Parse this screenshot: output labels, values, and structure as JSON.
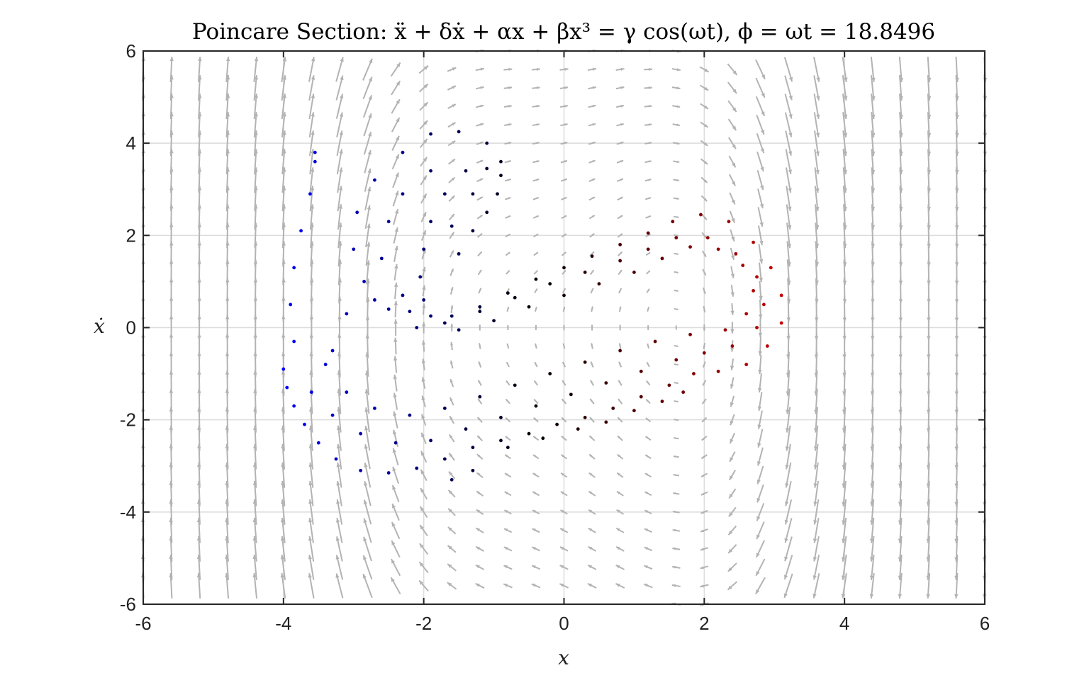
{
  "chart_data": {
    "type": "scatter",
    "title": "Poincare Section: ẍ + δẋ + αx + βx³ = γ cos(ωt), ϕ = ωt = 18.8496",
    "xlabel": "x",
    "ylabel": "ẋ",
    "xlim": [
      -6,
      6
    ],
    "ylim": [
      -6,
      6
    ],
    "xticks": [
      "-6",
      "-4",
      "-2",
      "0",
      "2",
      "4",
      "6"
    ],
    "yticks": [
      "-6",
      "-4",
      "-2",
      "0",
      "2",
      "4",
      "6"
    ],
    "grid": true,
    "colormap": [
      "#0000ff",
      "#000000",
      "#cc0000"
    ],
    "vector_field": {
      "color": "#b3b3b3",
      "grid_step": 0.4,
      "system": "dx/dt = y ; dy/dt = -delta*y - alpha*x - beta*x^3 + gamma*cos(phi)",
      "params": {
        "delta": 0.25,
        "alpha": -1,
        "beta": 1,
        "gamma": 2.5,
        "phi": 18.8496
      }
    },
    "series": [
      {
        "values": [
          [
            -4.0,
            -0.9
          ],
          [
            -3.95,
            -1.3
          ],
          [
            -3.85,
            -1.7
          ],
          [
            -3.7,
            -2.1
          ],
          [
            -3.5,
            -2.5
          ],
          [
            -3.25,
            -2.85
          ],
          [
            -2.9,
            -3.1
          ],
          [
            -2.5,
            -3.15
          ],
          [
            -2.1,
            -3.05
          ],
          [
            -1.7,
            -2.85
          ],
          [
            -1.3,
            -2.6
          ],
          [
            -0.9,
            -2.45
          ],
          [
            -0.5,
            -2.3
          ],
          [
            -0.1,
            -2.1
          ],
          [
            0.3,
            -1.95
          ],
          [
            0.7,
            -1.75
          ],
          [
            1.1,
            -1.5
          ],
          [
            1.5,
            -1.25
          ],
          [
            1.85,
            -1.0
          ],
          [
            2.2,
            -0.95
          ],
          [
            2.6,
            -0.8
          ],
          [
            2.9,
            -0.4
          ],
          [
            3.1,
            0.1
          ],
          [
            3.1,
            0.7
          ],
          [
            2.95,
            1.3
          ],
          [
            2.7,
            1.85
          ],
          [
            2.35,
            2.3
          ],
          [
            1.95,
            2.45
          ],
          [
            1.55,
            2.3
          ],
          [
            1.2,
            2.05
          ],
          [
            0.8,
            1.8
          ],
          [
            0.4,
            1.55
          ],
          [
            0.0,
            1.3
          ],
          [
            -0.4,
            1.05
          ],
          [
            -0.8,
            0.75
          ],
          [
            -1.2,
            0.45
          ],
          [
            -1.6,
            0.25
          ],
          [
            -1.9,
            0.25
          ],
          [
            -2.0,
            0.6
          ],
          [
            -2.05,
            1.1
          ],
          [
            -2.0,
            1.7
          ],
          [
            -1.9,
            2.3
          ],
          [
            -1.7,
            2.9
          ],
          [
            -1.4,
            3.4
          ],
          [
            -1.1,
            3.45
          ],
          [
            -0.9,
            3.3
          ],
          [
            -0.95,
            2.9
          ],
          [
            -1.1,
            2.5
          ],
          [
            -1.3,
            2.1
          ],
          [
            -1.5,
            1.6
          ]
        ]
      },
      {
        "values": [
          [
            -3.85,
            -0.3
          ],
          [
            -3.9,
            0.5
          ],
          [
            -3.85,
            1.3
          ],
          [
            -3.75,
            2.1
          ],
          [
            -3.62,
            2.9
          ],
          [
            -3.55,
            3.6
          ],
          [
            -3.55,
            3.8
          ],
          [
            -3.4,
            -0.8
          ],
          [
            -3.1,
            -1.4
          ],
          [
            -2.7,
            -1.75
          ],
          [
            -2.2,
            -1.9
          ],
          [
            -1.7,
            -1.75
          ],
          [
            -1.2,
            -1.5
          ],
          [
            -0.7,
            -1.25
          ],
          [
            -0.2,
            -1.0
          ],
          [
            0.3,
            -0.75
          ],
          [
            0.8,
            -0.5
          ],
          [
            1.3,
            -0.3
          ],
          [
            1.8,
            -0.15
          ],
          [
            2.3,
            -0.05
          ],
          [
            2.6,
            0.3
          ],
          [
            2.7,
            0.8
          ],
          [
            2.55,
            1.35
          ],
          [
            2.2,
            1.7
          ],
          [
            1.8,
            1.75
          ],
          [
            1.4,
            1.5
          ],
          [
            1.0,
            1.2
          ],
          [
            0.5,
            0.95
          ],
          [
            0.0,
            0.7
          ],
          [
            -0.5,
            0.45
          ],
          [
            -1.0,
            0.15
          ],
          [
            -1.5,
            -0.05
          ],
          [
            -2.1,
            0.0
          ],
          [
            -2.5,
            0.4
          ],
          [
            -2.85,
            1.0
          ],
          [
            -3.0,
            1.7
          ],
          [
            -2.95,
            2.5
          ],
          [
            -2.7,
            3.2
          ],
          [
            -2.3,
            3.8
          ],
          [
            -1.9,
            4.2
          ],
          [
            -1.5,
            4.25
          ],
          [
            -1.1,
            4.0
          ],
          [
            -0.9,
            3.6
          ],
          [
            -1.3,
            2.9
          ],
          [
            -1.6,
            2.2
          ],
          [
            -2.3,
            0.7
          ],
          [
            -2.6,
            1.5
          ],
          [
            -2.5,
            2.3
          ],
          [
            -2.3,
            2.9
          ],
          [
            -1.9,
            3.4
          ]
        ]
      },
      {
        "values": [
          [
            -3.6,
            -1.4
          ],
          [
            -3.3,
            -1.9
          ],
          [
            -2.9,
            -2.3
          ],
          [
            -2.4,
            -2.5
          ],
          [
            -1.9,
            -2.45
          ],
          [
            -1.4,
            -2.2
          ],
          [
            -0.9,
            -1.95
          ],
          [
            -0.4,
            -1.7
          ],
          [
            0.1,
            -1.45
          ],
          [
            0.6,
            -1.2
          ],
          [
            1.1,
            -0.95
          ],
          [
            1.6,
            -0.7
          ],
          [
            2.0,
            -0.55
          ],
          [
            2.4,
            -0.4
          ],
          [
            2.75,
            0.0
          ],
          [
            2.85,
            0.5
          ],
          [
            2.75,
            1.1
          ],
          [
            2.45,
            1.6
          ],
          [
            2.05,
            1.95
          ],
          [
            1.6,
            1.95
          ],
          [
            1.2,
            1.7
          ],
          [
            0.8,
            1.45
          ],
          [
            0.3,
            1.2
          ],
          [
            -0.2,
            0.95
          ],
          [
            -0.7,
            0.65
          ],
          [
            -1.2,
            0.35
          ],
          [
            -1.7,
            0.1
          ],
          [
            -2.2,
            0.35
          ],
          [
            -2.7,
            0.6
          ],
          [
            -3.1,
            0.3
          ],
          [
            -3.3,
            -0.5
          ],
          [
            -0.8,
            -2.6
          ],
          [
            -0.3,
            -2.4
          ],
          [
            0.2,
            -2.2
          ],
          [
            0.6,
            -2.05
          ],
          [
            1.0,
            -1.8
          ],
          [
            1.4,
            -1.6
          ],
          [
            1.7,
            -1.4
          ],
          [
            -1.6,
            -3.3
          ],
          [
            -1.3,
            -3.1
          ]
        ]
      }
    ]
  }
}
